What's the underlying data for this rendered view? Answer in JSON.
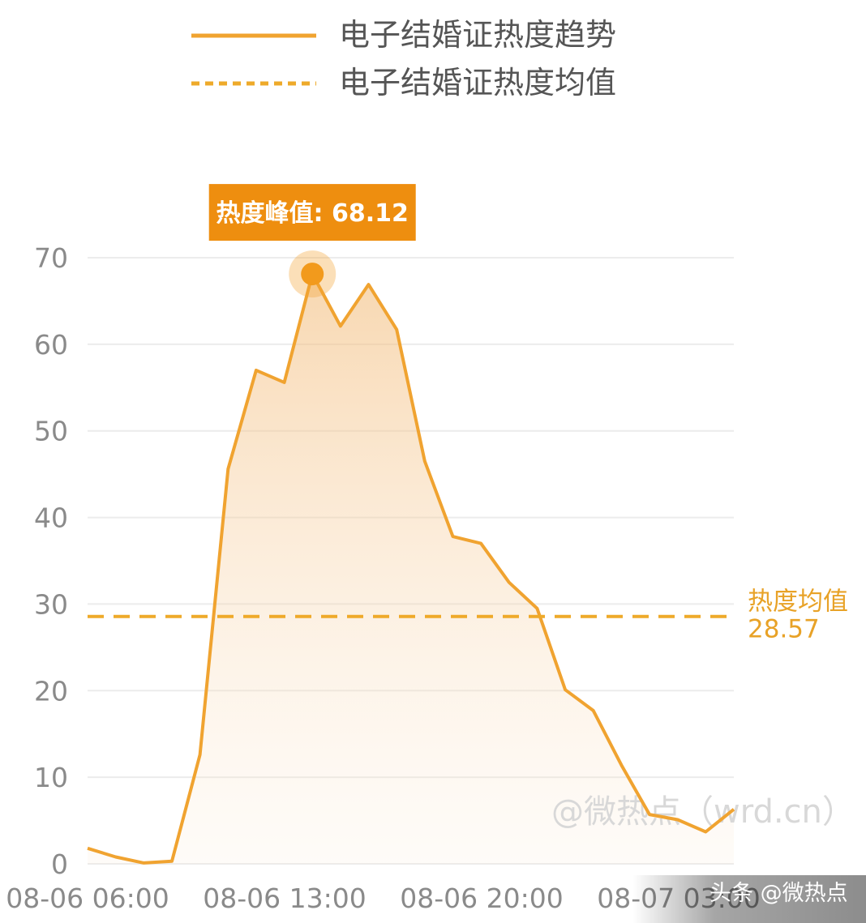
{
  "chart_data": {
    "type": "area",
    "legend_position": "top",
    "legend": {
      "trend_label": "电子结婚证热度趋势",
      "mean_label": "电子结婚证热度均值"
    },
    "x_tick_labels": [
      "08-06 06:00",
      "08-06 13:00",
      "08-06 20:00",
      "08-07 03:00"
    ],
    "y_ticks": [
      0,
      10,
      20,
      30,
      40,
      50,
      60,
      70
    ],
    "ylim": [
      0,
      70
    ],
    "grid": true,
    "series": [
      {
        "name": "电子结婚证热度趋势",
        "color": "#f0a330",
        "x": [
          0,
          1,
          2,
          3,
          4,
          5,
          6,
          7,
          8,
          9,
          10,
          11,
          12,
          13,
          14,
          15,
          16,
          17,
          18,
          19,
          20,
          21,
          22,
          23
        ],
        "values": [
          1.8,
          0.8,
          0.1,
          0.3,
          12.6,
          45.6,
          57.0,
          55.6,
          68.12,
          62.1,
          66.9,
          61.7,
          46.5,
          37.8,
          37.0,
          32.5,
          29.5,
          20.1,
          17.7,
          11.4,
          5.7,
          5.1,
          3.7,
          6.3
        ]
      }
    ],
    "mean": {
      "value": 28.57,
      "label": "热度均值",
      "value_text": "28.57",
      "color": "#eeaa2a"
    },
    "peak": {
      "label": "热度峰值: 68.12",
      "index": 8,
      "color": "#ee8e0f"
    }
  },
  "watermark": "@微热点（wrd.cn）",
  "footer": "头条 @微热点"
}
